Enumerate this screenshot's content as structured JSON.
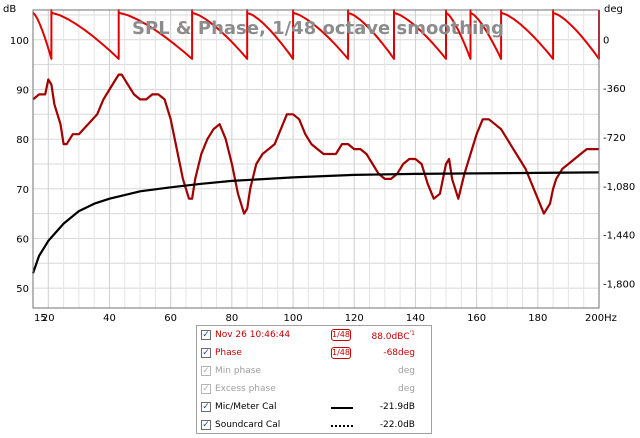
{
  "chart_data": {
    "type": "line",
    "title": "SPL & Phase, 1/48 octave smoothing",
    "y_left_unit": "dB",
    "y_right_unit": "deg",
    "x_unit": "Hz",
    "xlim": [
      15,
      200
    ],
    "ylim": [
      46,
      106
    ],
    "y2lim": [
      -1980,
      216
    ],
    "x_ticks": [
      "15",
      "20",
      "40",
      "60",
      "80",
      "100",
      "120",
      "140",
      "160",
      "180",
      "200Hz"
    ],
    "x_tick_values": [
      15,
      20,
      40,
      60,
      80,
      100,
      120,
      140,
      160,
      180,
      200
    ],
    "y_ticks": [
      50,
      60,
      70,
      80,
      90,
      100
    ],
    "y2_ticks": [
      "0",
      "-360",
      "-720",
      "-1,080",
      "-1,440",
      "-1,800"
    ],
    "y2_tick_values": [
      0,
      -360,
      -720,
      -1080,
      -1440,
      -1800
    ],
    "grid": true,
    "series": [
      {
        "name": "Nov 26 10:46:44",
        "axis": "left",
        "color": "#a00000",
        "x": [
          15,
          17,
          19,
          20,
          21,
          22,
          24,
          25,
          26,
          28,
          30,
          33,
          36,
          38,
          40,
          42,
          43,
          44,
          46,
          48,
          50,
          52,
          54,
          56,
          58,
          60,
          62,
          64,
          66,
          67,
          68,
          70,
          72,
          74,
          76,
          78,
          80,
          82,
          84,
          85,
          86,
          88,
          90,
          92,
          94,
          96,
          98,
          100,
          102,
          104,
          106,
          108,
          110,
          112,
          114,
          116,
          118,
          120,
          122,
          124,
          126,
          128,
          130,
          131,
          132,
          134,
          136,
          138,
          140,
          142,
          144,
          146,
          148,
          150,
          151,
          152,
          154,
          156,
          158,
          160,
          162,
          164,
          166,
          168,
          170,
          172,
          174,
          176,
          178,
          180,
          182,
          184,
          185,
          186,
          188,
          190,
          192,
          194,
          196,
          198,
          200
        ],
        "y": [
          88,
          89,
          89,
          92,
          91,
          87,
          83,
          79,
          79,
          81,
          81,
          83,
          85,
          88,
          90,
          92,
          93,
          93,
          91,
          89,
          88,
          88,
          89,
          89,
          88,
          84,
          78,
          72,
          68,
          68,
          72,
          77,
          80,
          82,
          83,
          80,
          75,
          69,
          65,
          66,
          70,
          75,
          77,
          78,
          79,
          82,
          85,
          85,
          84,
          81,
          79,
          78,
          77,
          77,
          77,
          79,
          79,
          78,
          78,
          77,
          75,
          73,
          72,
          72,
          72,
          73,
          75,
          76,
          76,
          75,
          71,
          68,
          69,
          75,
          76,
          72,
          68,
          73,
          77,
          81,
          84,
          84,
          83,
          82,
          80,
          78,
          76,
          74,
          71,
          68,
          65,
          67,
          70,
          72,
          74,
          75,
          76,
          77,
          78,
          78,
          78
        ]
      },
      {
        "name": "Phase",
        "axis": "right",
        "color": "#e00000"
      },
      {
        "name": "Mic/Meter Cal",
        "axis": "left",
        "color": "#000000",
        "x": [
          15,
          17,
          20,
          25,
          30,
          35,
          40,
          50,
          60,
          70,
          80,
          100,
          120,
          140,
          160,
          180,
          200
        ],
        "y": [
          53,
          56.5,
          59.5,
          63,
          65.5,
          67,
          68,
          69.5,
          70.3,
          71,
          71.6,
          72.3,
          72.8,
          73,
          73.1,
          73.2,
          73.3
        ]
      }
    ]
  },
  "legend": {
    "rows": [
      {
        "label": "Nov 26 10:46:44",
        "smoothing": "1/48",
        "value": "88.0dBC",
        "value_sup": "'1",
        "checked": true,
        "enabled": true,
        "color": "red"
      },
      {
        "label": "Phase",
        "smoothing": "1/48",
        "value": "-68deg",
        "checked": true,
        "enabled": true,
        "color": "red"
      },
      {
        "label": "Min phase",
        "smoothing": "",
        "value": "deg",
        "checked": true,
        "enabled": false,
        "color": "grey"
      },
      {
        "label": "Excess phase",
        "smoothing": "",
        "value": "deg",
        "checked": true,
        "enabled": false,
        "color": "grey"
      },
      {
        "label": "Mic/Meter Cal",
        "smoothing": "",
        "value": "-21.9dB",
        "checked": true,
        "enabled": true,
        "color": "black",
        "line": "solid"
      },
      {
        "label": "Soundcard Cal",
        "smoothing": "",
        "value": "-22.0dB",
        "checked": true,
        "enabled": true,
        "color": "black",
        "line": "dotted"
      }
    ]
  }
}
